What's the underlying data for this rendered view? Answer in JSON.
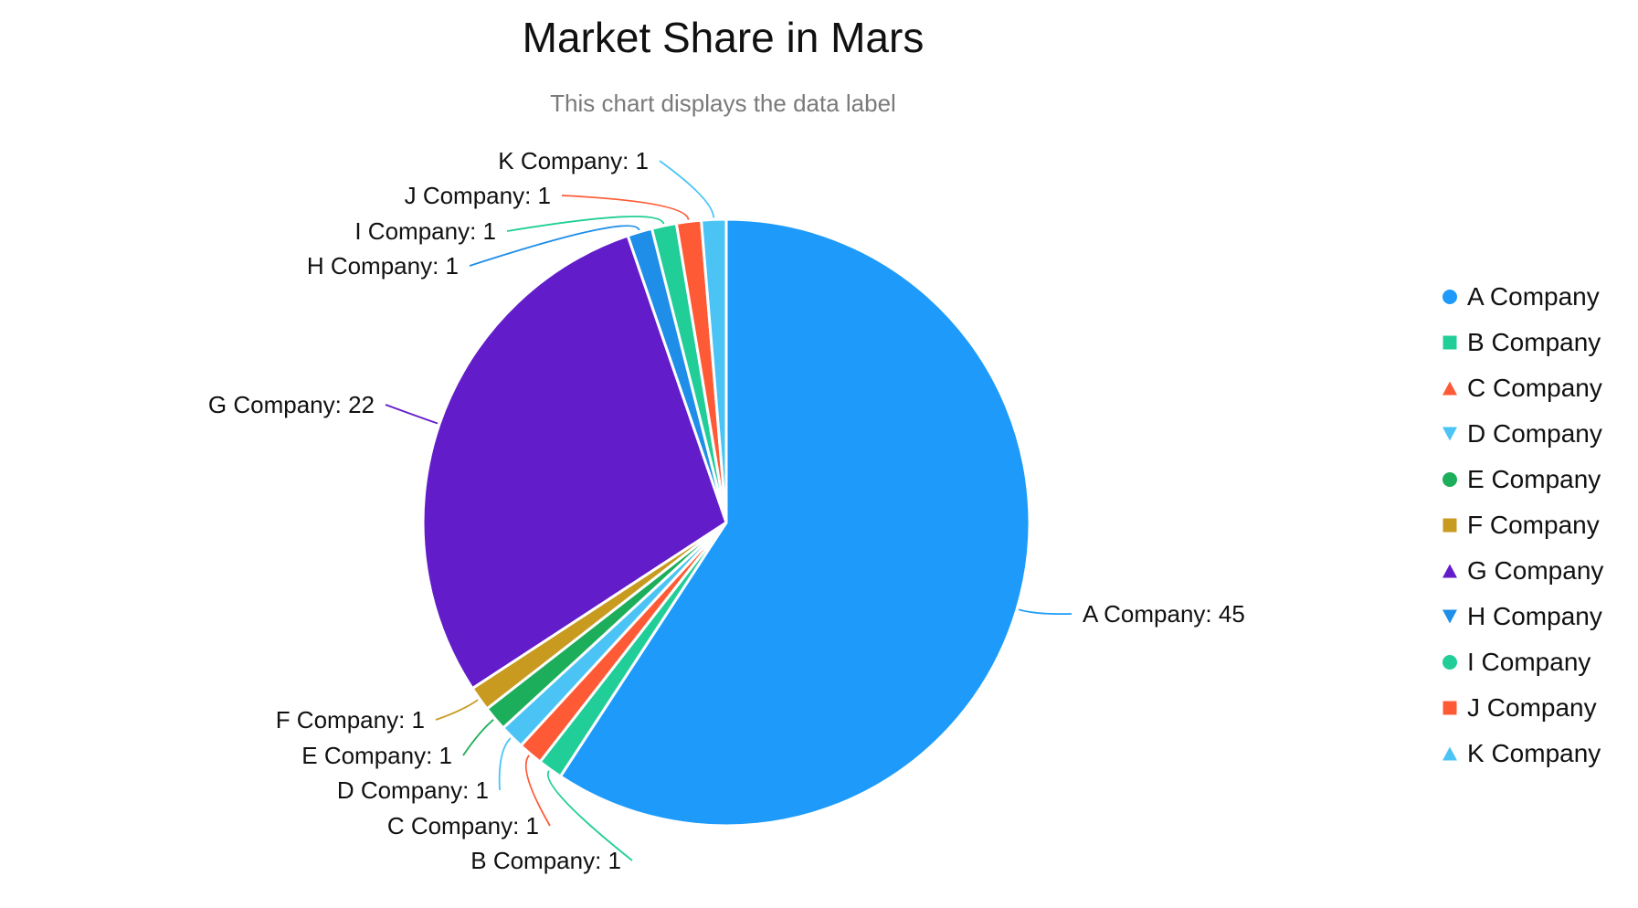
{
  "chart_data": {
    "type": "pie",
    "title": "Market Share in Mars",
    "subtitle": "This chart displays the data label",
    "legend_position": "right",
    "categories": [
      "A Company",
      "B Company",
      "C Company",
      "D Company",
      "E Company",
      "F Company",
      "G Company",
      "H Company",
      "I Company",
      "J Company",
      "K Company"
    ],
    "values": [
      45,
      1,
      1,
      1,
      1,
      1,
      22,
      1,
      1,
      1,
      1
    ],
    "colors": [
      "#1E9BFA",
      "#21CE97",
      "#FF5A36",
      "#4BC4F5",
      "#1CAE5A",
      "#C99A20",
      "#621CC9",
      "#1E8EE8",
      "#21CE97",
      "#FF5A36",
      "#4BC4F5"
    ],
    "markers": [
      "circle",
      "square",
      "triangle-up",
      "triangle-down",
      "circle",
      "square",
      "triangle-up",
      "triangle-down",
      "circle",
      "square",
      "triangle-up"
    ],
    "data_labels": [
      "A Company: 45",
      "B Company: 1",
      "C Company: 1",
      "D Company: 1",
      "E Company: 1",
      "F Company: 1",
      "G Company: 22",
      "H Company: 1",
      "I Company: 1",
      "J Company: 1",
      "K Company: 1"
    ]
  }
}
